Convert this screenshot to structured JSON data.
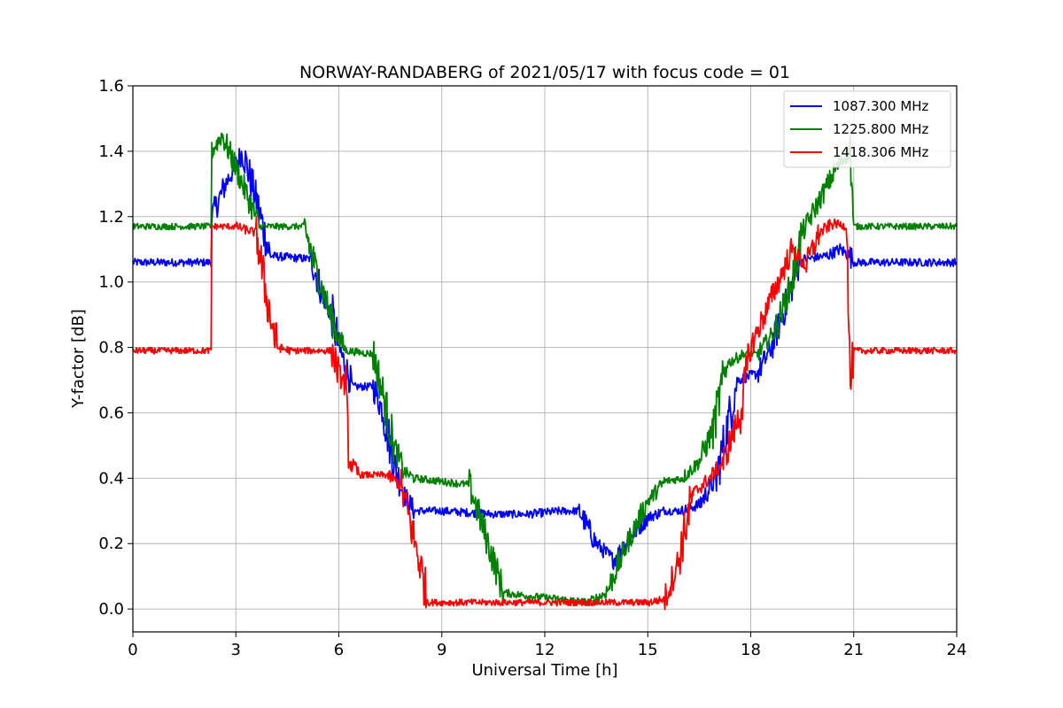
{
  "chart_data": {
    "type": "line",
    "title": "NORWAY-RANDABERG of 2021/05/17 with focus code = 01",
    "xlabel": "Universal Time [h]",
    "ylabel": "Y-factor [dB]",
    "xlim": [
      0,
      24
    ],
    "ylim": [
      -0.07,
      1.6
    ],
    "xticks": [
      0,
      3,
      6,
      9,
      12,
      15,
      18,
      21,
      24
    ],
    "xtick_labels": [
      "0",
      "3",
      "6",
      "9",
      "12",
      "15",
      "18",
      "21",
      "24"
    ],
    "yticks": [
      0.0,
      0.2,
      0.4,
      0.6,
      0.8,
      1.0,
      1.2,
      1.4,
      1.6
    ],
    "ytick_labels": [
      "0.0",
      "0.2",
      "0.4",
      "0.6",
      "0.8",
      "1.0",
      "1.2",
      "1.4",
      "1.6"
    ],
    "grid": true,
    "legend_position": "top-right",
    "series": [
      {
        "name": "1087.300 MHz",
        "color": "#0000ff",
        "noise": 0.012,
        "x": [
          0,
          2.3,
          2.3,
          2.7,
          3.2,
          3.6,
          4.0,
          5.2,
          5.5,
          5.8,
          6.0,
          6.4,
          7.0,
          7.3,
          7.6,
          7.9,
          8.2,
          9.0,
          10.5,
          11.5,
          12.5,
          13.0,
          13.5,
          14.0,
          14.5,
          15.0,
          15.5,
          16.0,
          16.5,
          17.0,
          17.3,
          17.6,
          18.2,
          18.6,
          19.0,
          19.4,
          19.6,
          20.2,
          20.6,
          20.9,
          21.0,
          22.0,
          23.0,
          24.0
        ],
        "y": [
          1.06,
          1.06,
          1.2,
          1.3,
          1.4,
          1.25,
          1.08,
          1.07,
          0.97,
          0.9,
          0.8,
          0.68,
          0.68,
          0.6,
          0.45,
          0.35,
          0.3,
          0.3,
          0.29,
          0.29,
          0.3,
          0.3,
          0.2,
          0.15,
          0.22,
          0.28,
          0.3,
          0.3,
          0.32,
          0.4,
          0.55,
          0.7,
          0.72,
          0.8,
          0.92,
          1.06,
          1.07,
          1.08,
          1.1,
          1.08,
          1.06,
          1.06,
          1.06,
          1.06
        ]
      },
      {
        "name": "1225.800 MHz",
        "color": "#008000",
        "noise": 0.01,
        "x": [
          0,
          2.3,
          2.3,
          2.6,
          3.0,
          3.5,
          3.7,
          5.0,
          5.3,
          5.6,
          5.9,
          6.2,
          7.0,
          7.3,
          7.6,
          7.9,
          8.2,
          9.0,
          9.8,
          10.2,
          10.8,
          11.5,
          12.5,
          13.3,
          13.8,
          14.4,
          15.0,
          15.5,
          16.0,
          16.5,
          16.9,
          17.3,
          17.8,
          18.2,
          18.7,
          19.2,
          19.5,
          20.0,
          20.5,
          20.9,
          21.0,
          22.0,
          23.0,
          24.0
        ],
        "y": [
          1.17,
          1.17,
          1.4,
          1.45,
          1.35,
          1.22,
          1.17,
          1.17,
          1.05,
          0.95,
          0.85,
          0.79,
          0.78,
          0.65,
          0.5,
          0.42,
          0.4,
          0.39,
          0.38,
          0.25,
          0.05,
          0.04,
          0.03,
          0.02,
          0.05,
          0.2,
          0.33,
          0.39,
          0.4,
          0.45,
          0.55,
          0.75,
          0.78,
          0.78,
          0.85,
          1.0,
          1.15,
          1.25,
          1.35,
          1.4,
          1.17,
          1.17,
          1.17,
          1.17
        ]
      },
      {
        "name": "1418.306 MHz",
        "color": "#ff0000",
        "noise": 0.01,
        "x": [
          0,
          2.3,
          2.3,
          3.0,
          3.6,
          3.9,
          4.2,
          4.6,
          5.8,
          6.0,
          6.2,
          6.3,
          6.6,
          7.4,
          7.8,
          8.0,
          8.4,
          8.6,
          9.0,
          10.0,
          11.0,
          12.0,
          13.0,
          14.0,
          15.0,
          15.5,
          15.9,
          16.3,
          16.8,
          17.2,
          17.7,
          18.0,
          18.4,
          18.8,
          19.2,
          19.6,
          20.0,
          20.4,
          20.8,
          20.9,
          21.0,
          22.0,
          23.0,
          24.0
        ],
        "y": [
          0.79,
          0.79,
          1.17,
          1.17,
          1.15,
          0.95,
          0.8,
          0.79,
          0.79,
          0.72,
          0.68,
          0.45,
          0.41,
          0.41,
          0.38,
          0.3,
          0.12,
          0.02,
          0.02,
          0.02,
          0.02,
          0.02,
          0.02,
          0.02,
          0.02,
          0.03,
          0.15,
          0.35,
          0.4,
          0.45,
          0.6,
          0.8,
          0.9,
          1.0,
          1.1,
          1.05,
          1.15,
          1.18,
          1.17,
          0.68,
          0.79,
          0.79,
          0.79,
          0.79
        ]
      }
    ]
  }
}
